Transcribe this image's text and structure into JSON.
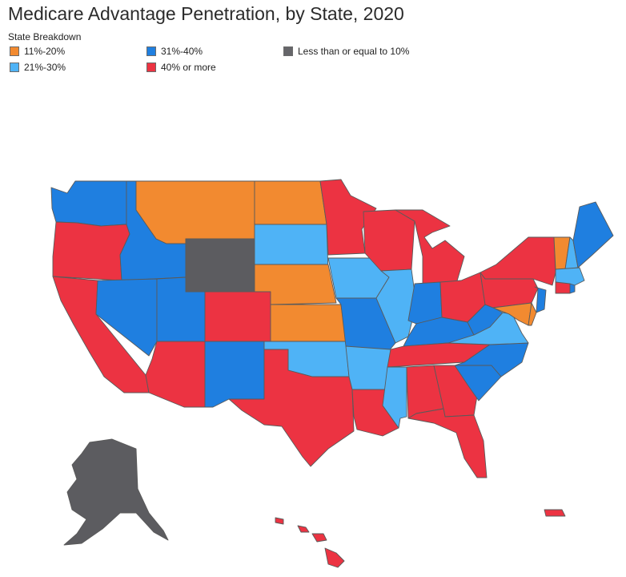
{
  "title": "Medicare Advantage Penetration, by State, 2020",
  "legend": {
    "title": "State Breakdown",
    "items": [
      {
        "label": "11%-20%",
        "color": "#f28a30"
      },
      {
        "label": "21%-30%",
        "color": "#4fb3f6"
      },
      {
        "label": "31%-40%",
        "color": "#1f7fe0"
      },
      {
        "label": "40% or more",
        "color": "#ec3342"
      },
      {
        "label": "Less than or equal to 10%",
        "color": "#66666a"
      }
    ]
  }
}
